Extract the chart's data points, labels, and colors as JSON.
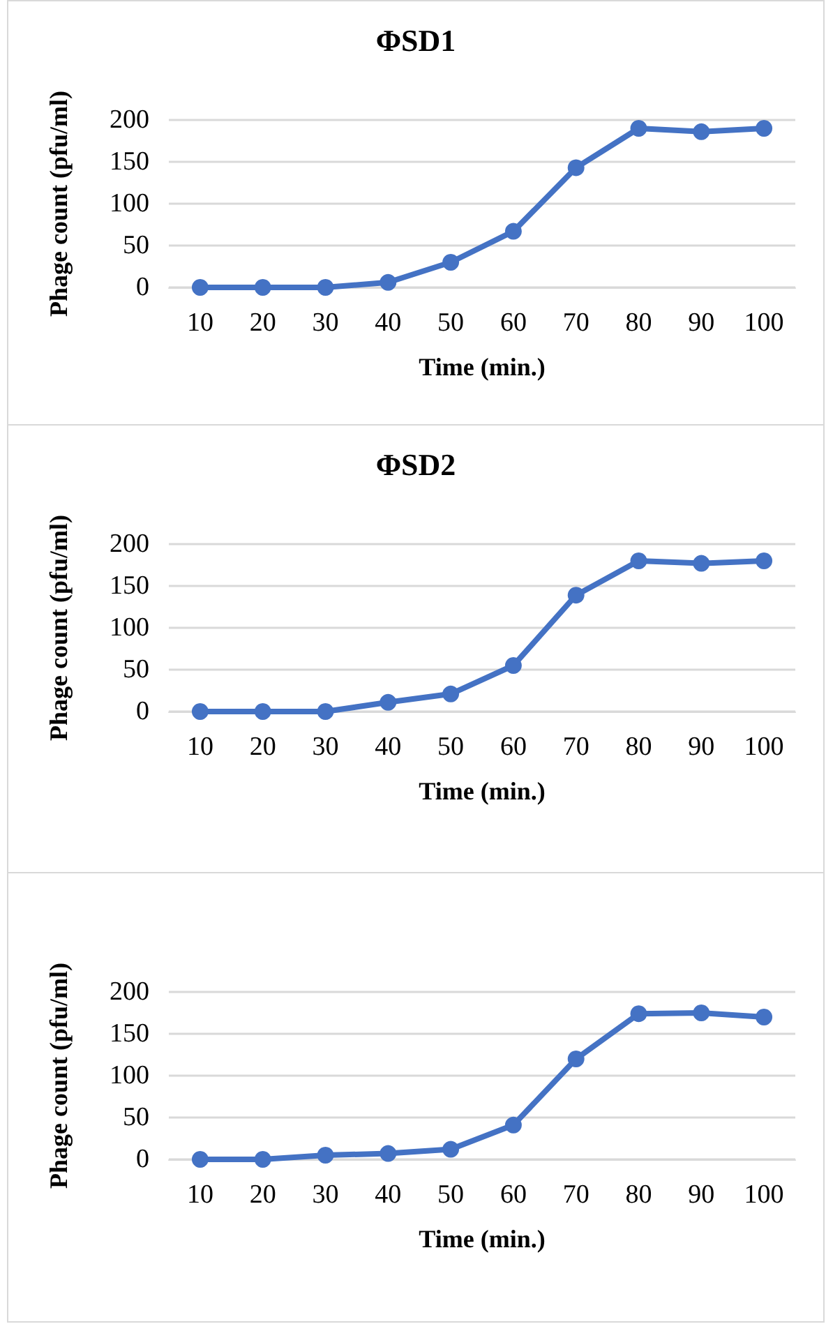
{
  "chart_data": [
    {
      "type": "line",
      "title": "ΦSD1",
      "xlabel": "Time (min.)",
      "ylabel": "Phage count (pfu/ml)",
      "categories": [
        "10",
        "20",
        "30",
        "40",
        "50",
        "60",
        "70",
        "80",
        "90",
        "100"
      ],
      "series": [
        {
          "color": "#4472c4",
          "values": [
            0,
            0,
            0,
            6,
            30,
            67,
            143,
            190,
            186,
            190
          ]
        }
      ],
      "ylim": [
        0,
        200
      ],
      "yticks": [
        0,
        50,
        100,
        150,
        200
      ],
      "grid": "y",
      "marker": "circle",
      "line_style": "solid"
    },
    {
      "type": "line",
      "title": "ΦSD2",
      "xlabel": "Time (min.)",
      "ylabel": "Phage count (pfu/ml)",
      "categories": [
        "10",
        "20",
        "30",
        "40",
        "50",
        "60",
        "70",
        "80",
        "90",
        "100"
      ],
      "series": [
        {
          "color": "#4472c4",
          "values": [
            0,
            0,
            0,
            11,
            21,
            55,
            139,
            180,
            177,
            180
          ]
        }
      ],
      "ylim": [
        0,
        200
      ],
      "yticks": [
        0,
        50,
        100,
        150,
        200
      ],
      "grid": "y",
      "marker": "circle",
      "line_style": "solid"
    },
    {
      "type": "line",
      "xlabel": "Time (min.)",
      "ylabel": "Phage count (pfu/ml)",
      "categories": [
        "10",
        "20",
        "30",
        "40",
        "50",
        "60",
        "70",
        "80",
        "90",
        "100"
      ],
      "series": [
        {
          "color": "#4472c4",
          "values": [
            0,
            0,
            5,
            7,
            12,
            41,
            120,
            174,
            175,
            170
          ]
        }
      ],
      "ylim": [
        0,
        200
      ],
      "yticks": [
        0,
        50,
        100,
        150,
        200
      ],
      "grid": "y",
      "marker": "circle",
      "line_style": "solid"
    }
  ]
}
